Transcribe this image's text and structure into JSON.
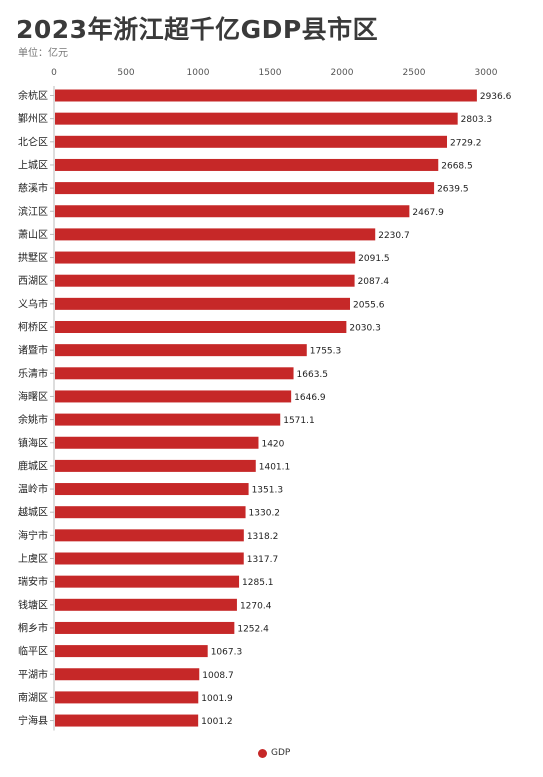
{
  "header": {
    "title": "2023年浙江超千亿GDP县市区",
    "unit": "单位：亿元"
  },
  "legend": {
    "label": "GDP"
  },
  "colors": {
    "bar": "#c62828",
    "axis": "#bbbbbb",
    "tick_text": "#555555"
  },
  "chart_data": {
    "type": "bar",
    "orientation": "horizontal",
    "categories": [
      "余杭区",
      "鄞州区",
      "北仑区",
      "上城区",
      "慈溪市",
      "滨江区",
      "萧山区",
      "拱墅区",
      "西湖区",
      "义乌市",
      "柯桥区",
      "诸暨市",
      "乐清市",
      "海曙区",
      "余姚市",
      "镇海区",
      "鹿城区",
      "温岭市",
      "越城区",
      "海宁市",
      "上虞区",
      "瑞安市",
      "钱塘区",
      "桐乡市",
      "临平区",
      "平湖市",
      "南湖区",
      "宁海县"
    ],
    "series": [
      {
        "name": "GDP",
        "values": [
          2936.6,
          2803.3,
          2729.2,
          2668.5,
          2639.5,
          2467.9,
          2230.7,
          2091.5,
          2087.4,
          2055.6,
          2030.3,
          1755.3,
          1663.5,
          1646.9,
          1571.1,
          1420,
          1401.1,
          1351.3,
          1330.2,
          1318.2,
          1317.7,
          1285.1,
          1270.4,
          1252.4,
          1067.3,
          1008.7,
          1001.9,
          1001.2
        ],
        "labels": [
          "2936.6",
          "2803.3",
          "2729.2",
          "2668.5",
          "2639.5",
          "2467.9",
          "2230.7",
          "2091.5",
          "2087.4",
          "2055.6",
          "2030.3",
          "1755.3",
          "1663.5",
          "1646.9",
          "1571.1",
          "1420",
          "1401.1",
          "1351.3",
          "1330.2",
          "1318.2",
          "1317.7",
          "1285.1",
          "1270.4",
          "1252.4",
          "1067.3",
          "1008.7",
          "1001.9",
          "1001.2"
        ]
      }
    ],
    "x_ticks": [
      "0",
      "500",
      "1000",
      "1500",
      "2000",
      "2500",
      "3000"
    ],
    "xlim": [
      0,
      3000
    ],
    "grid": false,
    "legend_position": "bottom"
  }
}
